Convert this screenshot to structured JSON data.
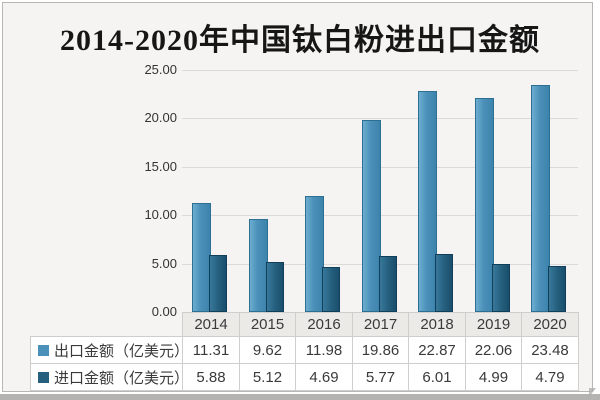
{
  "header": {
    "title": "2014-2020年中国钛白粉进出口金额"
  },
  "y_axis": {
    "ticks": [
      "25.00",
      "20.00",
      "15.00",
      "10.00",
      "5.00",
      "0.00"
    ]
  },
  "chart_data": {
    "type": "bar",
    "title": "2014-2020年中国钛白粉进出口金额",
    "categories": [
      "2014",
      "2015",
      "2016",
      "2017",
      "2018",
      "2019",
      "2020"
    ],
    "series": [
      {
        "name": "出口金额（亿美元）",
        "values": [
          11.31,
          9.62,
          11.98,
          19.86,
          22.87,
          22.06,
          23.48
        ],
        "color": "#4a90b8"
      },
      {
        "name": "进口金额（亿美元）",
        "values": [
          5.88,
          5.12,
          4.69,
          5.77,
          6.01,
          4.99,
          4.79
        ],
        "color": "#26607f"
      }
    ],
    "xlabel": "",
    "ylabel": "",
    "ylim": [
      0,
      25
    ],
    "grid": true,
    "legend_position": "table-rows-left"
  },
  "colors": {
    "export_bar": "#4a90b8",
    "import_bar": "#26607f",
    "gridline": "#dcdad8",
    "years_row_bg": "#eceae7",
    "cell_bg": "#ffffff",
    "card_bg": "#f5f4f2",
    "table_border": "#cfcecc",
    "text": "#3a3a3a"
  }
}
